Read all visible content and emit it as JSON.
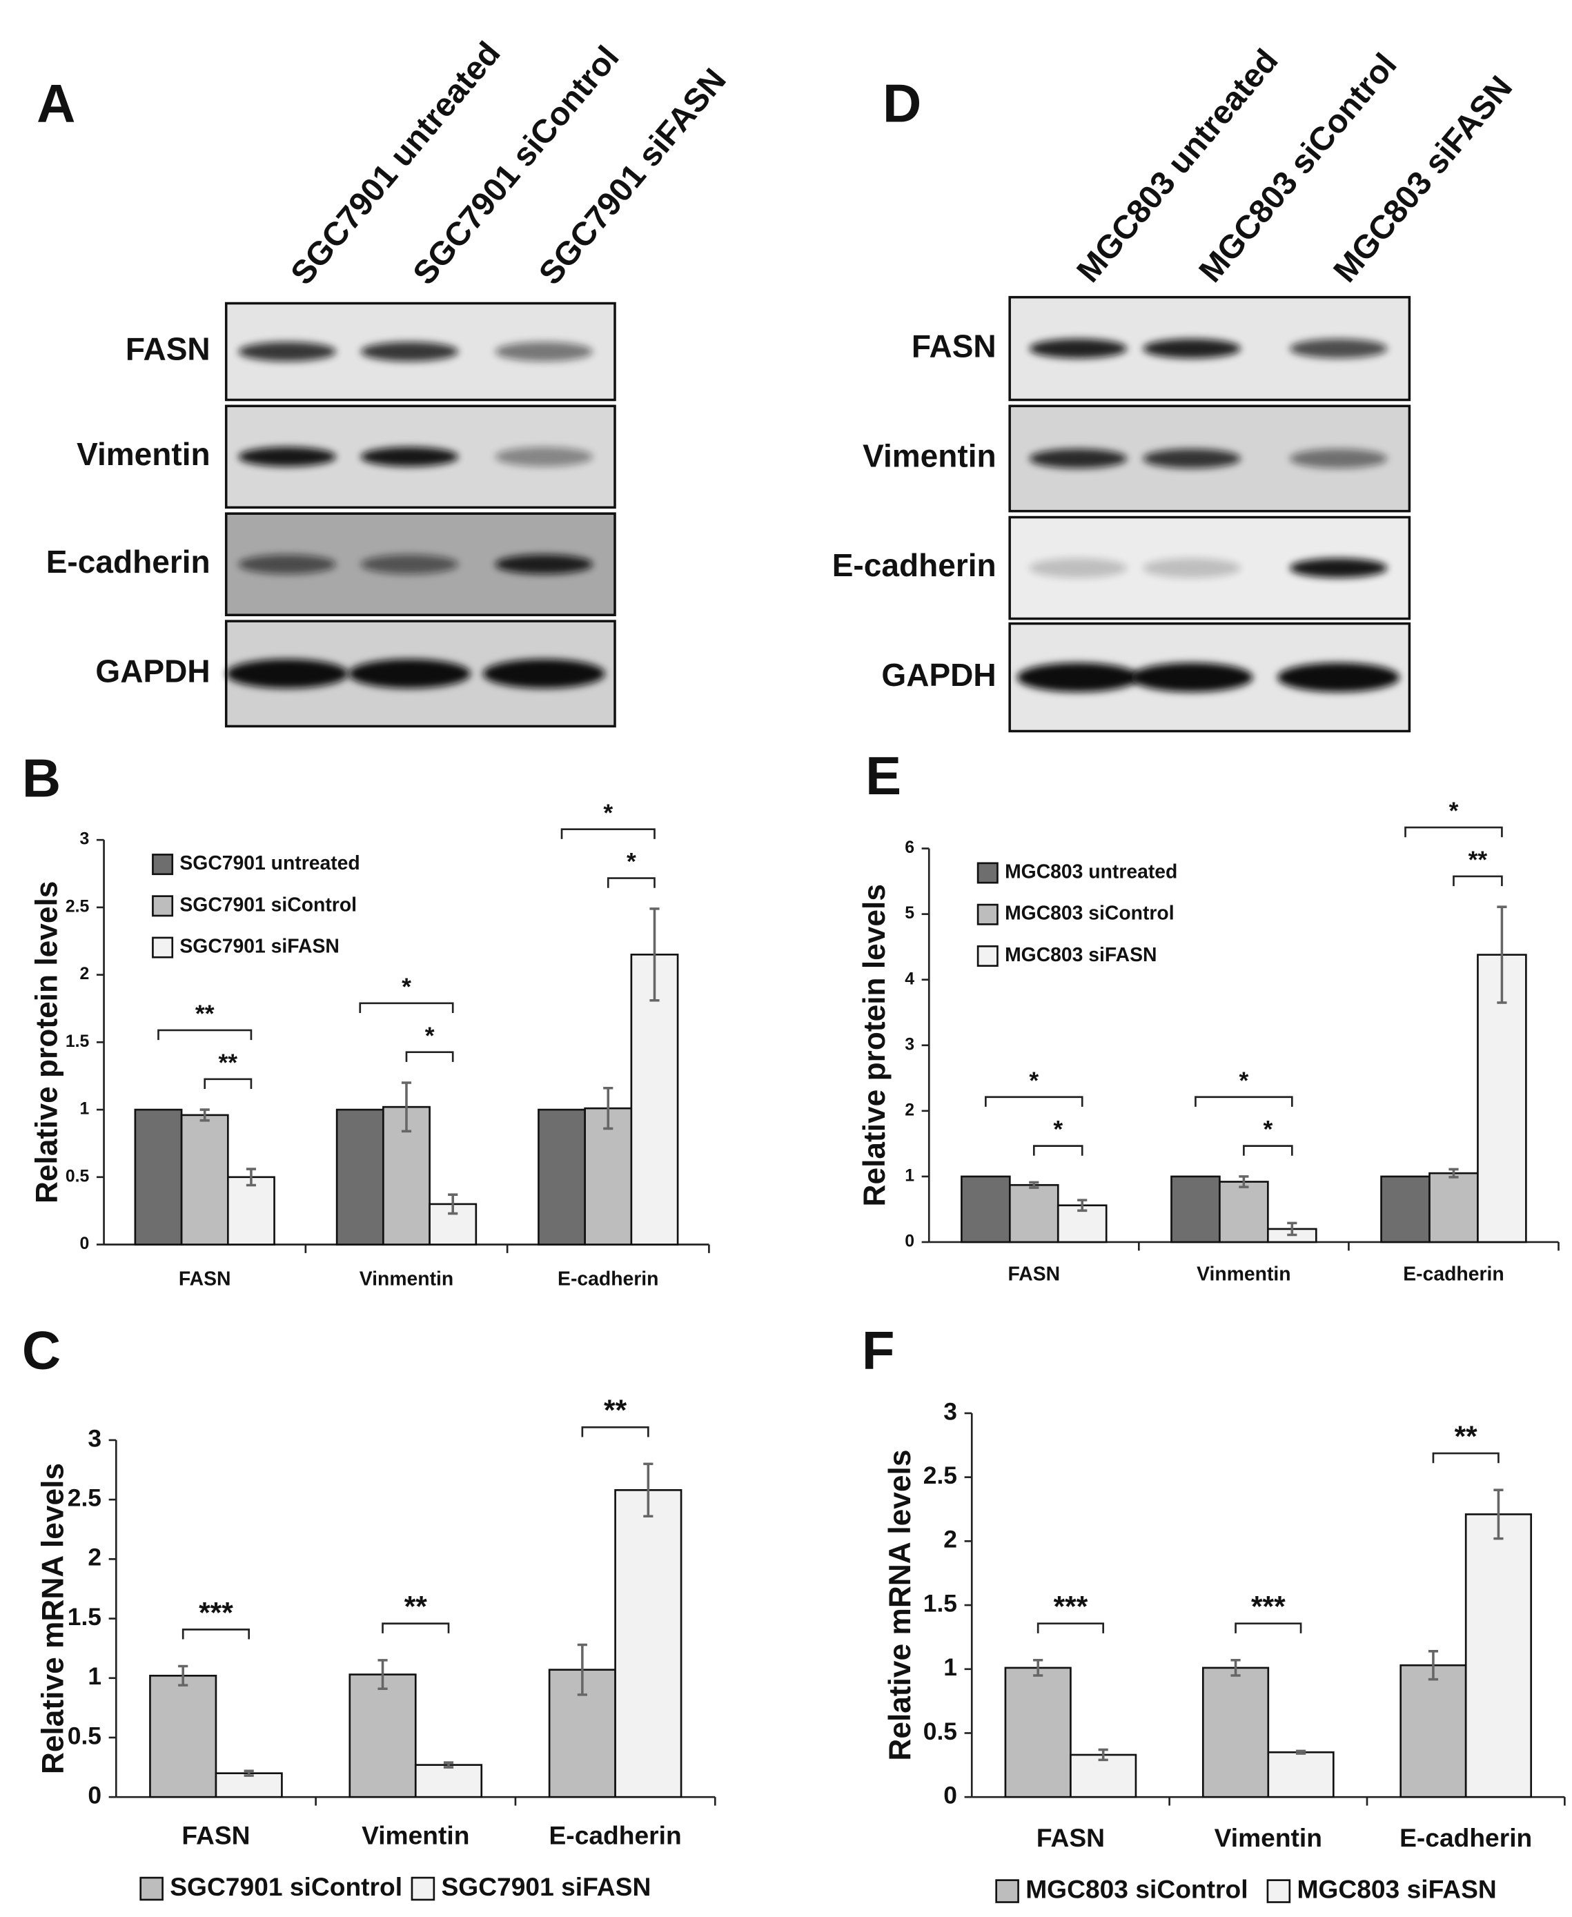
{
  "blots": [
    {
      "panel": "A",
      "lanes": [
        "SGC7901 untreated",
        "SGC7901 siControl",
        "SGC7901 siFASN"
      ],
      "proteins": [
        "FASN",
        "Vimentin",
        "E-cadherin",
        "GAPDH"
      ]
    },
    {
      "panel": "D",
      "lanes": [
        "MGC803 untreated",
        "MGC803 siControl",
        "MGC803 siFASN"
      ],
      "proteins": [
        "FASN",
        "Vimentin",
        "E-cadherin",
        "GAPDH"
      ]
    }
  ],
  "chart_data": [
    {
      "type": "bar",
      "panel": "B",
      "y_label": "Relative protein levels",
      "categories": [
        "FASN",
        "Vinmentin",
        "E-cadherin"
      ],
      "ylim": [
        0,
        3
      ],
      "yticks": [
        0,
        0.5,
        1,
        1.5,
        2,
        2.5,
        3
      ],
      "legend": "upper left",
      "series": [
        {
          "name": "SGC7901 untreated",
          "color": "#6e6e6e",
          "values": [
            1,
            1,
            1
          ]
        },
        {
          "name": "SGC7901 siControl",
          "color": "#bdbdbd",
          "values": [
            0.96,
            1.02,
            1.01
          ],
          "errors": [
            0.04,
            0.18,
            0.15
          ]
        },
        {
          "name": "SGC7901 siFASN",
          "color": "#f2f2f2",
          "values": [
            0.5,
            0.3,
            2.15
          ],
          "errors": [
            0.06,
            0.07,
            0.34
          ]
        }
      ],
      "comparisons": [
        {
          "category": 0,
          "series": [
            0,
            2
          ],
          "label": "**"
        },
        {
          "category": 0,
          "series": [
            1,
            2
          ],
          "label": "**"
        },
        {
          "category": 1,
          "series": [
            0,
            2
          ],
          "label": "*"
        },
        {
          "category": 1,
          "series": [
            1,
            2
          ],
          "label": "*"
        },
        {
          "category": 2,
          "series": [
            0,
            2
          ],
          "label": "*"
        },
        {
          "category": 2,
          "series": [
            1,
            2
          ],
          "label": "*"
        }
      ]
    },
    {
      "type": "bar",
      "panel": "E",
      "y_label": "Relative protein levels",
      "categories": [
        "FASN",
        "Vinmentin",
        "E-cadherin"
      ],
      "ylim": [
        0,
        6
      ],
      "yticks": [
        0,
        1,
        2,
        3,
        4,
        5,
        6
      ],
      "legend": "upper left",
      "series": [
        {
          "name": "MGC803 untreated",
          "color": "#6e6e6e",
          "values": [
            1,
            1,
            1
          ]
        },
        {
          "name": "MGC803 siControl",
          "color": "#bdbdbd",
          "values": [
            0.87,
            0.92,
            1.05
          ],
          "errors": [
            0.04,
            0.08,
            0.06
          ]
        },
        {
          "name": "MGC803 siFASN",
          "color": "#f2f2f2",
          "values": [
            0.56,
            0.2,
            4.38
          ],
          "errors": [
            0.08,
            0.09,
            0.73
          ]
        }
      ],
      "comparisons": [
        {
          "category": 0,
          "series": [
            0,
            2
          ],
          "label": "*"
        },
        {
          "category": 0,
          "series": [
            1,
            2
          ],
          "label": "*"
        },
        {
          "category": 1,
          "series": [
            0,
            2
          ],
          "label": "*"
        },
        {
          "category": 1,
          "series": [
            1,
            2
          ],
          "label": "*"
        },
        {
          "category": 2,
          "series": [
            0,
            2
          ],
          "label": "*"
        },
        {
          "category": 2,
          "series": [
            1,
            2
          ],
          "label": "**"
        }
      ]
    },
    {
      "type": "bar",
      "panel": "C",
      "y_label": "Relative mRNA levels",
      "categories": [
        "FASN",
        "Vimentin",
        "E-cadherin"
      ],
      "ylim": [
        0,
        3
      ],
      "yticks": [
        0,
        0.5,
        1,
        1.5,
        2,
        2.5,
        3
      ],
      "legend": "bottom",
      "series": [
        {
          "name": "SGC7901 siControl",
          "color": "#bdbdbd",
          "values": [
            1.02,
            1.03,
            1.07
          ],
          "errors": [
            0.08,
            0.12,
            0.21
          ]
        },
        {
          "name": "SGC7901 siFASN",
          "color": "#f2f2f2",
          "values": [
            0.2,
            0.27,
            2.58
          ],
          "errors": [
            0.02,
            0.02,
            0.22
          ]
        }
      ],
      "comparisons": [
        {
          "category": 0,
          "series": [
            0,
            1
          ],
          "label": "***"
        },
        {
          "category": 1,
          "series": [
            0,
            1
          ],
          "label": "**"
        },
        {
          "category": 2,
          "series": [
            0,
            1
          ],
          "label": "**"
        }
      ]
    },
    {
      "type": "bar",
      "panel": "F",
      "y_label": "Relative mRNA levels",
      "categories": [
        "FASN",
        "Vimentin",
        "E-cadherin"
      ],
      "ylim": [
        0,
        3
      ],
      "yticks": [
        0,
        0.5,
        1,
        1.5,
        2,
        2.5,
        3
      ],
      "legend": "bottom",
      "series": [
        {
          "name": "MGC803 siControl",
          "color": "#bdbdbd",
          "values": [
            1.01,
            1.01,
            1.03
          ],
          "errors": [
            0.06,
            0.06,
            0.11
          ]
        },
        {
          "name": "MGC803 siFASN",
          "color": "#f2f2f2",
          "values": [
            0.33,
            0.35,
            2.21
          ],
          "errors": [
            0.04,
            0.01,
            0.19
          ]
        }
      ],
      "comparisons": [
        {
          "category": 0,
          "series": [
            0,
            1
          ],
          "label": "***"
        },
        {
          "category": 1,
          "series": [
            0,
            1
          ],
          "label": "***"
        },
        {
          "category": 2,
          "series": [
            0,
            1
          ],
          "label": "**"
        }
      ]
    }
  ]
}
